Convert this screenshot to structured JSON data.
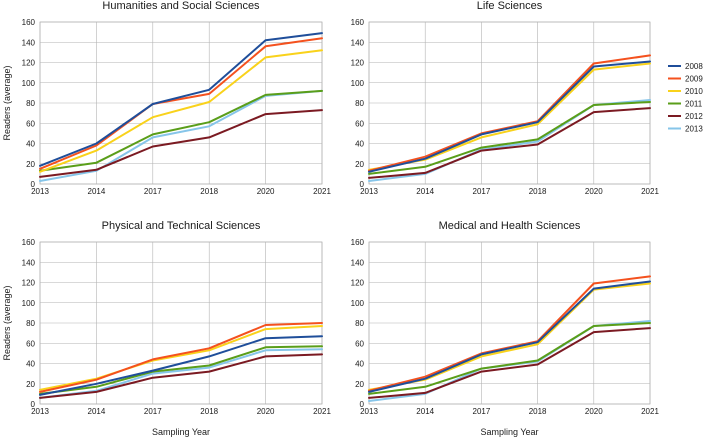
{
  "chart_data": [
    {
      "type": "line",
      "title": "Humanities and Social Sciences",
      "xlabel": "",
      "ylabel": "Readers (average)",
      "categories": [
        "2013",
        "2014",
        "2017",
        "2018",
        "2020",
        "2021"
      ],
      "ylim": [
        0,
        160
      ],
      "yticks": [
        0,
        20,
        40,
        60,
        80,
        100,
        120,
        140,
        160
      ],
      "grid": true,
      "series": [
        {
          "name": "2008",
          "color": "#1f4e9a",
          "values": [
            18,
            40,
            79,
            93,
            142,
            149
          ]
        },
        {
          "name": "2009",
          "color": "#f4511e",
          "values": [
            15,
            38,
            79,
            89,
            136,
            144
          ]
        },
        {
          "name": "2010",
          "color": "#f9d21b",
          "values": [
            12,
            33,
            66,
            81,
            125,
            132
          ]
        },
        {
          "name": "2011",
          "color": "#5a9e1a",
          "values": [
            13,
            21,
            49,
            61,
            88,
            92
          ]
        },
        {
          "name": "2012",
          "color": "#7b1a22",
          "values": [
            7,
            14,
            37,
            46,
            69,
            73
          ]
        },
        {
          "name": "2013",
          "color": "#86c5e9",
          "values": [
            3,
            13,
            46,
            57,
            87,
            92
          ]
        }
      ]
    },
    {
      "type": "line",
      "title": "Life Sciences",
      "xlabel": "",
      "ylabel": "",
      "categories": [
        "2013",
        "2014",
        "2017",
        "2018",
        "2020",
        "2021"
      ],
      "ylim": [
        0,
        160
      ],
      "yticks": [
        0,
        20,
        40,
        60,
        80,
        100,
        120,
        140,
        160
      ],
      "grid": true,
      "series": [
        {
          "name": "2008",
          "color": "#1f4e9a",
          "values": [
            12,
            25,
            49,
            61,
            116,
            121
          ]
        },
        {
          "name": "2009",
          "color": "#f4511e",
          "values": [
            13,
            27,
            50,
            62,
            119,
            127
          ]
        },
        {
          "name": "2010",
          "color": "#f9d21b",
          "values": [
            14,
            24,
            46,
            59,
            113,
            119
          ]
        },
        {
          "name": "2011",
          "color": "#5a9e1a",
          "values": [
            10,
            17,
            36,
            44,
            78,
            81
          ]
        },
        {
          "name": "2012",
          "color": "#7b1a22",
          "values": [
            6,
            11,
            33,
            39,
            71,
            75
          ]
        },
        {
          "name": "2013",
          "color": "#86c5e9",
          "values": [
            3,
            10,
            34,
            42,
            78,
            83
          ]
        }
      ]
    },
    {
      "type": "line",
      "title": "Physical and Technical Sciences",
      "xlabel": "Sampling Year",
      "ylabel": "Readers (average)",
      "categories": [
        "2013",
        "2014",
        "2017",
        "2018",
        "2020",
        "2021"
      ],
      "ylim": [
        0,
        160
      ],
      "yticks": [
        0,
        20,
        40,
        60,
        80,
        100,
        120,
        140,
        160
      ],
      "grid": true,
      "series": [
        {
          "name": "2008",
          "color": "#1f4e9a",
          "values": [
            9,
            20,
            33,
            47,
            65,
            67
          ]
        },
        {
          "name": "2009",
          "color": "#f4511e",
          "values": [
            12,
            24,
            44,
            55,
            78,
            80
          ]
        },
        {
          "name": "2010",
          "color": "#f9d21b",
          "values": [
            14,
            25,
            43,
            53,
            74,
            77
          ]
        },
        {
          "name": "2011",
          "color": "#5a9e1a",
          "values": [
            10,
            17,
            32,
            38,
            56,
            57
          ]
        },
        {
          "name": "2012",
          "color": "#7b1a22",
          "values": [
            6,
            12,
            26,
            32,
            47,
            49
          ]
        },
        {
          "name": "2013",
          "color": "#86c5e9",
          "values": [
            6,
            13,
            30,
            36,
            53,
            54
          ]
        }
      ]
    },
    {
      "type": "line",
      "title": "Medical and Health Sciences",
      "xlabel": "Sampling Year",
      "ylabel": "",
      "categories": [
        "2013",
        "2014",
        "2017",
        "2018",
        "2020",
        "2021"
      ],
      "ylim": [
        0,
        160
      ],
      "yticks": [
        0,
        20,
        40,
        60,
        80,
        100,
        120,
        140,
        160
      ],
      "grid": true,
      "series": [
        {
          "name": "2008",
          "color": "#1f4e9a",
          "values": [
            12,
            25,
            49,
            61,
            114,
            121
          ]
        },
        {
          "name": "2009",
          "color": "#f4511e",
          "values": [
            13,
            27,
            50,
            62,
            119,
            126
          ]
        },
        {
          "name": "2010",
          "color": "#f9d21b",
          "values": [
            14,
            24,
            47,
            59,
            113,
            119
          ]
        },
        {
          "name": "2011",
          "color": "#5a9e1a",
          "values": [
            10,
            17,
            35,
            43,
            77,
            80
          ]
        },
        {
          "name": "2012",
          "color": "#7b1a22",
          "values": [
            6,
            11,
            32,
            39,
            71,
            75
          ]
        },
        {
          "name": "2013",
          "color": "#86c5e9",
          "values": [
            3,
            10,
            35,
            42,
            77,
            82
          ]
        }
      ]
    }
  ],
  "legend": {
    "position": "right",
    "entries": [
      {
        "label": "2008",
        "color": "#1f4e9a"
      },
      {
        "label": "2009",
        "color": "#f4511e"
      },
      {
        "label": "2010",
        "color": "#f9d21b"
      },
      {
        "label": "2011",
        "color": "#5a9e1a"
      },
      {
        "label": "2012",
        "color": "#7b1a22"
      },
      {
        "label": "2013",
        "color": "#86c5e9"
      }
    ]
  }
}
